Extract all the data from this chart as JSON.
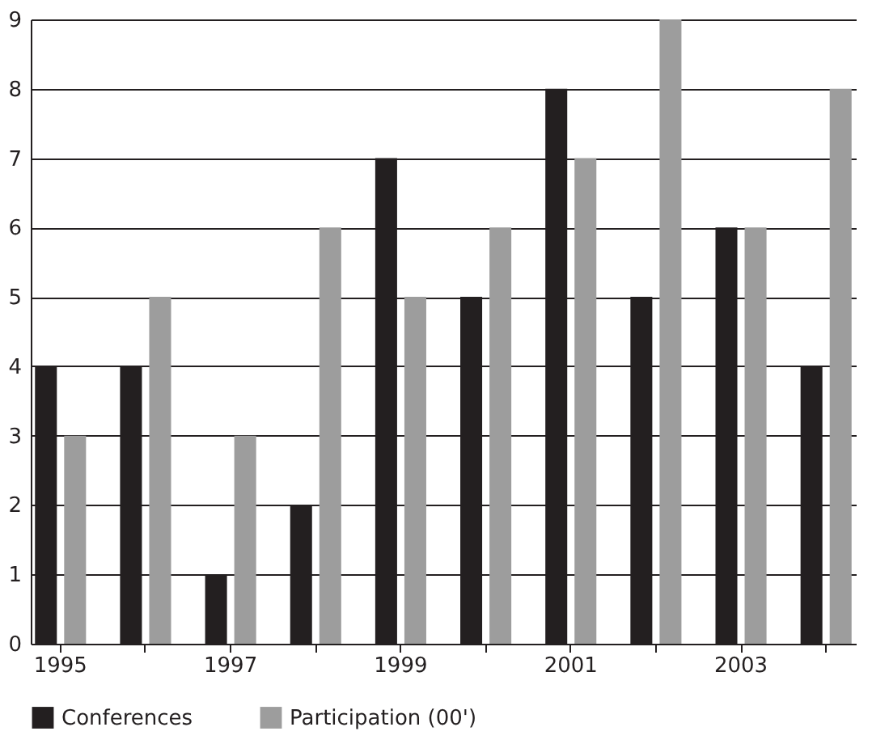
{
  "chart_data": {
    "type": "bar",
    "categories": [
      "1995",
      null,
      "1997",
      null,
      "1999",
      null,
      "2001",
      null,
      "2003",
      null
    ],
    "series": [
      {
        "name": "Conferences",
        "color": "#231f20",
        "values": [
          4,
          4,
          1,
          2,
          7,
          5,
          8,
          5,
          6,
          4
        ]
      },
      {
        "name": "Participation (00')",
        "color": "#9d9d9d",
        "values": [
          3,
          5,
          3,
          6,
          5,
          6,
          7,
          9,
          6,
          8
        ]
      }
    ],
    "ylim": [
      0,
      9
    ],
    "yticks": [
      0,
      1,
      2,
      3,
      4,
      5,
      6,
      7,
      8,
      9
    ],
    "grid": "y",
    "legend": "bottom"
  }
}
